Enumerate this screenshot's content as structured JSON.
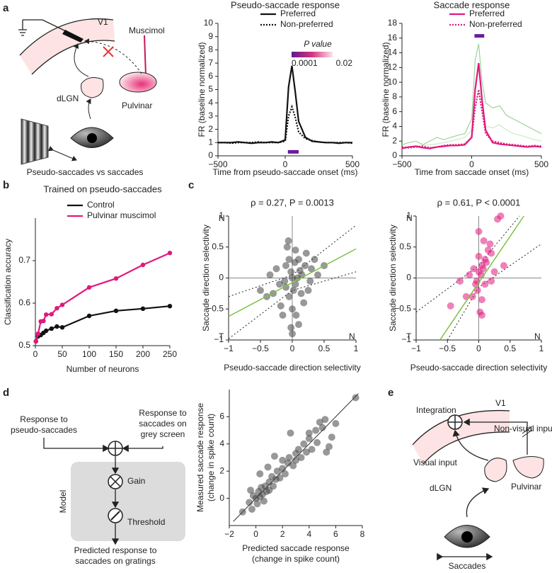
{
  "panel_labels": [
    "a",
    "b",
    "c",
    "d",
    "e"
  ],
  "diagram_a": {
    "v1": "V1",
    "muscimol": "Muscimol",
    "pulvinar": "Pulvinar",
    "dlgn": "dLGN",
    "caption": "Pseudo-saccades vs saccades"
  },
  "diagram_d": {
    "input_pseudo": [
      "Response to",
      "pseudo-saccades"
    ],
    "input_saccade": [
      "Response to",
      "saccades on",
      "grey screen"
    ],
    "model": "Model",
    "gain": "Gain",
    "threshold": "Threshold",
    "output": [
      "Predicted response to",
      "saccades on gratings"
    ]
  },
  "diagram_e": {
    "v1": "V1",
    "integration": "Integration",
    "non_visual": "Non-visual input",
    "visual": "Visual input",
    "dlgn": "dLGN",
    "pulvinar": "Pulvinar",
    "saccades": "Saccades"
  },
  "chart_data": [
    {
      "type": "line",
      "title": "Pseudo-saccade response",
      "xlabel": "Time from pseudo-saccade onset (ms)",
      "ylabel": "FR (baseline normalized)",
      "x": [
        -500,
        -450,
        -400,
        -350,
        -300,
        -250,
        -200,
        -150,
        -100,
        -50,
        0,
        25,
        50,
        75,
        100,
        150,
        200,
        250,
        300,
        350,
        400,
        450,
        500
      ],
      "series": [
        {
          "name": "Preferred",
          "color": "#111111",
          "linestyle": "solid",
          "values": [
            1,
            1,
            1,
            1.05,
            1,
            0.95,
            1,
            1,
            1.05,
            1,
            1.2,
            5.2,
            6.8,
            4.8,
            2.6,
            1.4,
            1.1,
            1.05,
            1,
            1,
            0.95,
            1,
            1
          ]
        },
        {
          "name": "Non-preferred",
          "color": "#111111",
          "linestyle": "dotted",
          "values": [
            1,
            1,
            0.95,
            1,
            1,
            1,
            1.05,
            1,
            1,
            1,
            1.1,
            3,
            3.7,
            2.9,
            1.8,
            1.3,
            1.15,
            1.05,
            1,
            1,
            1,
            1,
            0.95
          ]
        }
      ],
      "xlim": [
        -500,
        500
      ],
      "xticks": [
        {
          "value": -500,
          "label": "−500"
        },
        0,
        500
      ],
      "ylim": [
        0,
        10
      ],
      "yticks": [
        0,
        1,
        2,
        3,
        4,
        5,
        6,
        7,
        8,
        9,
        10
      ],
      "legend": "upper right",
      "sig_bar": {
        "x": [
          20,
          100
        ],
        "y": 0.3,
        "color": "#6a1b9a"
      },
      "colorbar": {
        "label": "P value",
        "ticks": [
          0.0001,
          0.02
        ],
        "colors": [
          "#5c1a8a",
          "#d6337f",
          "#fbe3ea"
        ]
      }
    },
    {
      "type": "line",
      "title": "Saccade response",
      "xlabel": "Time from saccade onset (ms)",
      "ylabel": "FR (baseline normalized)",
      "x": [
        -500,
        -450,
        -400,
        -350,
        -300,
        -250,
        -200,
        -150,
        -100,
        -50,
        0,
        25,
        50,
        75,
        100,
        150,
        200,
        250,
        300,
        350,
        400,
        450,
        500
      ],
      "series": [
        {
          "color": "#9fd39a",
          "linestyle": "solid",
          "values": [
            1.5,
            1.8,
            2,
            1.5,
            2,
            2.5,
            2.2,
            2.5,
            2.8,
            3,
            5,
            13,
            15.2,
            10,
            7.2,
            6.5,
            6.8,
            5.5,
            5,
            4.5,
            4,
            3.5,
            3
          ]
        },
        {
          "color": "#cde9c9",
          "linestyle": "solid",
          "values": [
            1,
            1.2,
            1.3,
            1.4,
            1.5,
            1.6,
            1.8,
            2,
            2.2,
            2.5,
            3.5,
            7,
            8.8,
            6,
            4,
            3.8,
            4.2,
            3.5,
            3,
            2.8,
            2.5,
            2.2,
            2
          ]
        },
        {
          "name": "Preferred",
          "color": "#e0197d",
          "linestyle": "solid",
          "values": [
            1,
            1.2,
            1.3,
            1.1,
            1,
            1.2,
            1.3,
            1.4,
            1.4,
            1.5,
            2.5,
            9,
            12.6,
            7.5,
            3.5,
            1.8,
            1.6,
            1.5,
            1.4,
            1.3,
            1.2,
            1.3,
            1.2
          ]
        },
        {
          "name": "Non-preferred",
          "color": "#e0197d",
          "linestyle": "dotted",
          "values": [
            1.2,
            1.1,
            1.2,
            1.3,
            1.1,
            1.2,
            1.4,
            1.5,
            1.5,
            1.6,
            2.5,
            6.5,
            9,
            6,
            3,
            2,
            1.8,
            1.6,
            1.5,
            1.4,
            1.3,
            1.4,
            1.3
          ]
        }
      ],
      "xlim": [
        -500,
        500
      ],
      "xticks": [
        {
          "value": -500,
          "label": "−500"
        },
        0,
        500
      ],
      "ylim": [
        0,
        18
      ],
      "yticks": [
        0,
        2,
        4,
        6,
        8,
        10,
        12,
        14,
        16,
        18
      ],
      "legend": "upper right",
      "sig_bar": {
        "x": [
          20,
          90
        ],
        "y": 16.3,
        "color": "#6a1b9a"
      }
    },
    {
      "type": "line",
      "title": "Trained on pseudo-saccades",
      "xlabel": "Number of neurons",
      "ylabel": "Classification accuracy",
      "markers": true,
      "x": [
        1,
        5,
        10,
        15,
        20,
        30,
        40,
        50,
        100,
        150,
        200,
        250
      ],
      "series": [
        {
          "name": "Control",
          "color": "#111111",
          "linestyle": "solid",
          "values": [
            0.51,
            0.522,
            0.525,
            0.53,
            0.535,
            0.54,
            0.545,
            0.543,
            0.57,
            0.582,
            0.587,
            0.593
          ]
        },
        {
          "name": "Pulvinar muscimol",
          "color": "#e0197d",
          "linestyle": "solid",
          "values": [
            0.51,
            0.528,
            0.557,
            0.558,
            0.573,
            0.574,
            0.588,
            0.596,
            0.637,
            0.658,
            0.69,
            0.718
          ]
        }
      ],
      "xlim": [
        0,
        250
      ],
      "xticks": [
        0,
        50,
        100,
        150,
        200,
        250
      ],
      "ylim": [
        0.5,
        0.8
      ],
      "yticks": [
        0.5,
        0.6,
        0.7
      ],
      "legend": "upper left"
    },
    {
      "type": "scatter",
      "title": "ρ = 0.27, P = 0.0013",
      "xlabel": "Pseudo-saccade direction selectivity",
      "ylabel": "Saccade direction selectivity",
      "color": "#444444",
      "x": [
        -0.02,
        0.05,
        -0.1,
        0.1,
        -0.05,
        0.15,
        -0.2,
        0,
        0.2,
        -0.3,
        0.05,
        -0.08,
        0.25,
        0.3,
        -0.4,
        -0.15,
        0.1,
        0,
        -0.02,
        0.35,
        -0.25,
        0.08,
        -0.12,
        0.18,
        0.4,
        -0.05,
        0.02,
        0.12,
        -0.35,
        0.22,
        -0.18,
        0.06,
        -0.1,
        0.28,
        0.5,
        -0.5,
        0.04,
        -0.06,
        0.14,
        0
      ],
      "values": [
        0.1,
        -0.1,
        0.2,
        0.3,
        -0.3,
        0.05,
        -0.1,
        -0.5,
        0.2,
        -0.25,
        0.45,
        0.5,
        -0.2,
        0.15,
        -0.3,
        -0.6,
        -0.75,
        -0.9,
        -0.8,
        0.3,
        0.15,
        0,
        -0.05,
        -0.4,
        0.05,
        0.3,
        -0.2,
        0.12,
        0.05,
        0.4,
        -0.45,
        -0.6,
        -0.15,
        -0.05,
        0.2,
        -0.2,
        0.25,
        0.6,
        -0.25,
        0
      ],
      "xlim": [
        -1,
        1
      ],
      "xticks": [
        {
          "value": -1,
          "label": "−1"
        },
        {
          "value": -0.5,
          "label": "−0.5"
        },
        0,
        0.5,
        1
      ],
      "ylim": [
        -1,
        1
      ],
      "yticks": [
        {
          "value": -1,
          "label": "−1"
        },
        {
          "value": -0.5,
          "label": "−0.5"
        },
        0,
        0.5,
        1
      ],
      "zero_lines": true,
      "corner_labels": {
        "top_left": "N",
        "bottom_left": "T",
        "bottom_right": "N"
      },
      "fit": {
        "x": [
          -1,
          1
        ],
        "y": [
          -0.62,
          0.47
        ],
        "color": "#7cc144"
      },
      "ci": [
        {
          "x": [
            -1,
            0,
            1
          ],
          "y": [
            -0.3,
            0.05,
            0.85
          ]
        },
        {
          "x": [
            -1,
            0,
            1
          ],
          "y": [
            -0.98,
            -0.2,
            0.1
          ]
        }
      ]
    },
    {
      "type": "scatter",
      "title": "ρ = 0.61, P < 0.0001",
      "xlabel": "Pseudo-saccade direction selectivity",
      "ylabel": "Saccade direction selectivity",
      "color": "#e0197d",
      "x": [
        0,
        0.05,
        -0.05,
        0.1,
        0.3,
        0.35,
        0.2,
        -0.1,
        0.02,
        0.05,
        -0.2,
        -0.45,
        0.15,
        0.08,
        0,
        -0.02,
        0.25,
        0.1,
        -0.15,
        0,
        0.12,
        -0.08,
        0.05,
        0.2,
        0.04,
        -0.03,
        0.18,
        0.4,
        -0.3,
        0.07
      ],
      "values": [
        0.1,
        0.2,
        -0.1,
        0.3,
        0.95,
        1,
        0.4,
        -0.3,
        -0.55,
        -0.6,
        -0.3,
        -0.45,
        0.45,
        0.6,
        0.35,
        -0.2,
        0.1,
        -0.1,
        0.05,
        0.75,
        0.25,
        0.15,
        -0.35,
        -0.05,
        0.05,
        -0.05,
        0.55,
        0.2,
        -0.05,
        0.15
      ],
      "xlim": [
        -1,
        1
      ],
      "xticks": [
        {
          "value": -1,
          "label": "−1"
        },
        {
          "value": -0.5,
          "label": "−0.5"
        },
        0,
        0.5,
        1
      ],
      "ylim": [
        -1,
        1
      ],
      "yticks": [
        {
          "value": -1,
          "label": "−1"
        },
        {
          "value": -0.5,
          "label": "−0.5"
        },
        0,
        0.5,
        1
      ],
      "zero_lines": true,
      "corner_labels": {
        "top_left": "N",
        "bottom_left": "T",
        "bottom_right": "N"
      },
      "fit": {
        "x": [
          -0.62,
          0.72
        ],
        "y": [
          -1,
          1
        ],
        "color": "#7cc144"
      },
      "ci": [
        {
          "x": [
            -1,
            0,
            0.65
          ],
          "y": [
            -0.55,
            0.2,
            1
          ]
        },
        {
          "x": [
            -0.5,
            0,
            1
          ],
          "y": [
            -1,
            -0.15,
            0.55
          ]
        }
      ]
    },
    {
      "type": "scatter",
      "xlabel": [
        "Predicted saccade response",
        "(change in spike count)"
      ],
      "ylabel": [
        "Measured saccade response",
        "(change in spike count)"
      ],
      "color": "#444444",
      "x": [
        -0.5,
        -0.3,
        -0.2,
        0,
        0.1,
        0.2,
        0.3,
        0.4,
        0.5,
        0.6,
        0.7,
        0.8,
        1,
        1,
        1.2,
        1.3,
        1.5,
        1.6,
        1.8,
        2,
        2,
        2.2,
        2.4,
        2.5,
        2.8,
        3,
        3,
        3.2,
        3.4,
        3.6,
        3.8,
        4,
        4,
        4.2,
        4.5,
        4.6,
        4.8,
        5,
        5.2,
        5.3,
        5.5,
        5.7,
        6,
        0.3,
        -0.4,
        1.4,
        0.9,
        -1,
        7.5,
        2.6
      ],
      "values": [
        -0.3,
        -0.8,
        0.2,
        0,
        -0.4,
        0.5,
        0.1,
        0.8,
        0.3,
        -0.2,
        0.9,
        0.5,
        1.2,
        0.6,
        1.6,
        0.9,
        1.4,
        2,
        1.5,
        2.2,
        2.8,
        1.8,
        2.6,
        3,
        2.4,
        3.3,
        2.8,
        3.6,
        3,
        4,
        3.4,
        4.4,
        4.8,
        3.6,
        5,
        4.1,
        5.6,
        5.2,
        5.8,
        3.4,
        3.8,
        4.5,
        5.5,
        1.8,
        0.6,
        3.1,
        2.3,
        -1,
        7.4,
        4.8
      ],
      "xlim": [
        -2,
        8
      ],
      "xticks": [
        {
          "value": -2,
          "label": "−2"
        },
        0,
        2,
        4,
        6,
        8
      ],
      "ylim": [
        -2,
        8
      ],
      "yticks": [
        0,
        2,
        4,
        6
      ],
      "ref_line": {
        "x": [
          -1.7,
          7.7
        ],
        "y": [
          -1.7,
          7.7
        ]
      }
    }
  ]
}
